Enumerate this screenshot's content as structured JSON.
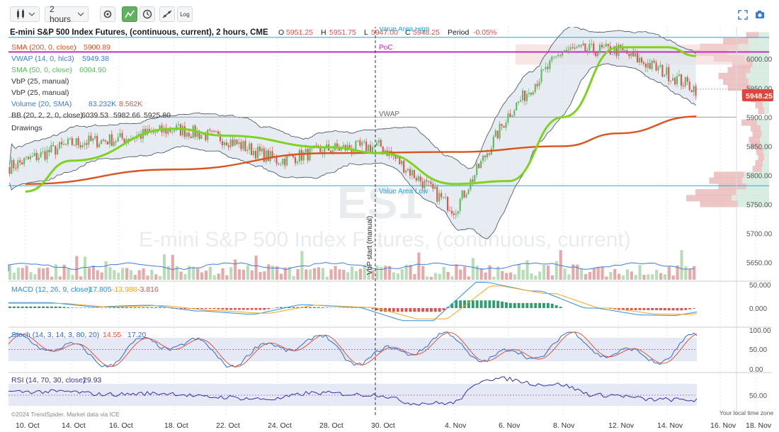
{
  "toolbar": {
    "interval": "2 hours",
    "log_label": "Log"
  },
  "legend": {
    "title": "E-mini S&P 500 Index Futures, (continuous, current), 2 hours, CME",
    "o_label": "O",
    "o": "5951.25",
    "h_label": "H",
    "h": "5951.75",
    "l_label": "L",
    "l": "5947.00",
    "c_label": "C",
    "c": "5948.25",
    "period_label": "Period",
    "period": "-0.05%",
    "sma200": {
      "label": "SMA (200, 0, close)",
      "value": "5900.89"
    },
    "vwap": {
      "label": "VWAP (14, 0, hlc3)",
      "value": "5949.38"
    },
    "sma50": {
      "label": "SMA (50, 0, close)",
      "value": "6004.90"
    },
    "vbp1": "VbP (25, manual)",
    "vbp2": "VbP (25, manual)",
    "volume": {
      "label": "Volume (20, SMA)",
      "v1": "83.232K",
      "v2": "8.562K"
    },
    "bb": {
      "label": "BB (20, 2, 2, 0, close)",
      "v1": "6039.53",
      "v2": "5982.66",
      "v3": "5925.80"
    },
    "drawings": "Drawings"
  },
  "annotations": {
    "value_area_high": "Value Area High",
    "poc": "PoC",
    "vwap": "VWAP",
    "value_area_low": "Value Area Low",
    "vbp_start": "VbP start (manual)"
  },
  "watermark": {
    "symbol": "ES1",
    "name": "E-mini S&P 500 Index Futures, (continuous, current)"
  },
  "price_tag": "5948.25",
  "macd": {
    "label": "MACD (12, 26, 9, close)",
    "v1": "-17.805",
    "v2": "-13.988",
    "v3": "-3.816"
  },
  "stoch": {
    "label": "Stoch (14, 3, 14, 3, 80, 20)",
    "v1": "14.55",
    "v2": "17.20"
  },
  "rsi": {
    "label": "RSI (14, 70, 30, close)",
    "v1": "29.93"
  },
  "footer": {
    "copyright": "©2024 TrendSpider. Market data via ICE",
    "tz": "Your local time zone"
  },
  "colors": {
    "up": "#5cb85c",
    "down": "#d9534f",
    "sma200": "#d9541e",
    "sma50": "#7ed321",
    "vwap": "#3b7ddd",
    "poc": "#c22fc0",
    "va": "#1fa9e0",
    "bb": "#3c4a5a",
    "macd": "#2d8fe0",
    "signal": "#f5a623",
    "stoch_k": "#2d6bd6",
    "stoch_d": "#e0573d",
    "rsi": "#3333aa"
  },
  "chart_data": {
    "type": "line",
    "price_axis": {
      "ticks": [
        "6000.00",
        "5950.00",
        "5900.00",
        "5850.00",
        "5800.00",
        "5750.00",
        "5700.00",
        "5650.00"
      ],
      "range": [
        5635,
        6055
      ]
    },
    "date_axis": [
      "10. Oct",
      "14. Oct",
      "16. Oct",
      "18. Oct",
      "22. Oct",
      "24. Oct",
      "28. Oct",
      "30. Oct",
      "4. Nov",
      "6. Nov",
      "8. Nov",
      "12. Nov",
      "14. Nov",
      "16. Nov",
      "18. Nov"
    ],
    "price_path": [
      [
        "10. Oct",
        5825
      ],
      [
        "14. Oct",
        5855
      ],
      [
        "16. Oct",
        5862
      ],
      [
        "18. Oct",
        5880
      ],
      [
        "22. Oct",
        5862
      ],
      [
        "24. Oct",
        5825
      ],
      [
        "28. Oct",
        5845
      ],
      [
        "30. Oct",
        5850
      ],
      [
        "4. Nov",
        5740
      ],
      [
        "6. Nov",
        5905
      ],
      [
        "8. Nov",
        6015
      ],
      [
        "12. Nov",
        6015
      ],
      [
        "14. Nov",
        5975
      ],
      [
        "15. Nov",
        5948
      ]
    ],
    "sma200_path": [
      [
        "10. Oct",
        5785
      ],
      [
        "18. Oct",
        5810
      ],
      [
        "28. Oct",
        5838
      ],
      [
        "4. Nov",
        5840
      ],
      [
        "8. Nov",
        5850
      ],
      [
        "12. Nov",
        5872
      ],
      [
        "15. Nov",
        5901
      ]
    ],
    "sma50_path": [
      [
        "10. Oct",
        5772
      ],
      [
        "14. Oct",
        5825
      ],
      [
        "18. Oct",
        5880
      ],
      [
        "22. Oct",
        5868
      ],
      [
        "28. Oct",
        5848
      ],
      [
        "30. Oct",
        5838
      ],
      [
        "4. Nov",
        5785
      ],
      [
        "6. Nov",
        5790
      ],
      [
        "8. Nov",
        5900
      ],
      [
        "12. Nov",
        6020
      ],
      [
        "14. Nov",
        6020
      ],
      [
        "15. Nov",
        6005
      ]
    ],
    "levels": {
      "value_area_high": 6037,
      "poc": 6012,
      "vwap": 5900,
      "value_area_low": 5782
    },
    "macd_axis": [
      "50.000",
      "0.000"
    ],
    "stoch_axis": [
      "100.00",
      "50.00",
      "0.00"
    ],
    "rsi_axis": [
      "50.00"
    ]
  }
}
